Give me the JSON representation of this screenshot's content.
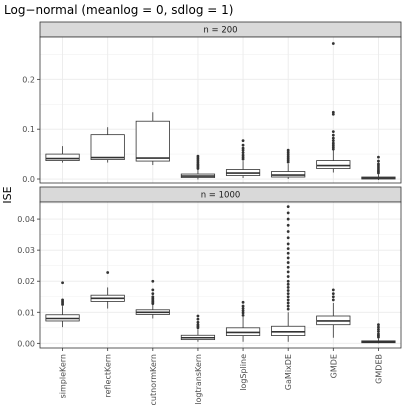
{
  "chart_data": {
    "type": "boxplot",
    "title": "Log−normal (meanlog = 0, sdlog = 1)",
    "ylabel": "ISE",
    "xlabel": "",
    "grid": true,
    "legend": "none",
    "categories": [
      "simpleKern",
      "reflectKern",
      "cutnormKern",
      "logtransKern",
      "logSpline",
      "GaMixDE",
      "GMDE",
      "GMDEB"
    ],
    "panels": [
      {
        "strip_label": "n = 200",
        "ylim": [
          -0.008,
          0.285
        ],
        "y_ticks": [
          0.0,
          0.1,
          0.2
        ],
        "y_tick_labels": [
          "0.0",
          "0.1",
          "0.2"
        ],
        "boxes": [
          {
            "category": "simpleKern",
            "whisker_low": 0.033,
            "q1": 0.037,
            "median": 0.041,
            "q3": 0.05,
            "whisker_high": 0.066,
            "outliers": []
          },
          {
            "category": "reflectKern",
            "whisker_low": 0.033,
            "q1": 0.039,
            "median": 0.043,
            "q3": 0.089,
            "whisker_high": 0.104,
            "outliers": []
          },
          {
            "category": "cutnormKern",
            "whisker_low": 0.028,
            "q1": 0.036,
            "median": 0.042,
            "q3": 0.116,
            "whisker_high": 0.134,
            "outliers": []
          },
          {
            "category": "logtransKern",
            "whisker_low": -0.001,
            "q1": 0.003,
            "median": 0.006,
            "q3": 0.01,
            "whisker_high": 0.018,
            "outliers": [
              0.021,
              0.024,
              0.027,
              0.03,
              0.034,
              0.038,
              0.042,
              0.046
            ]
          },
          {
            "category": "logSpline",
            "whisker_low": 0.002,
            "q1": 0.007,
            "median": 0.012,
            "q3": 0.019,
            "whisker_high": 0.036,
            "outliers": [
              0.04,
              0.044,
              0.048,
              0.053,
              0.058,
              0.062,
              0.068,
              0.077
            ]
          },
          {
            "category": "GaMixDE",
            "whisker_low": 0.0,
            "q1": 0.004,
            "median": 0.008,
            "q3": 0.015,
            "whisker_high": 0.03,
            "outliers": [
              0.034,
              0.038,
              0.042,
              0.046,
              0.05,
              0.054,
              0.058
            ]
          },
          {
            "category": "GMDE",
            "whisker_low": 0.013,
            "q1": 0.021,
            "median": 0.027,
            "q3": 0.037,
            "whisker_high": 0.058,
            "outliers": [
              0.06,
              0.064,
              0.068,
              0.072,
              0.077,
              0.082,
              0.088,
              0.095,
              0.13,
              0.134,
              0.272
            ]
          },
          {
            "category": "GMDEB",
            "whisker_low": -0.002,
            "q1": 0.0,
            "median": 0.002,
            "q3": 0.004,
            "whisker_high": 0.009,
            "outliers": [
              0.012,
              0.015,
              0.018,
              0.022,
              0.026,
              0.03,
              0.036,
              0.044
            ]
          }
        ]
      },
      {
        "strip_label": "n = 1000",
        "ylim": [
          -0.0015,
          0.0455
        ],
        "y_ticks": [
          0.0,
          0.01,
          0.02,
          0.03,
          0.04
        ],
        "y_tick_labels": [
          "0.00",
          "0.01",
          "0.02",
          "0.03",
          "0.04"
        ],
        "boxes": [
          {
            "category": "simpleKern",
            "whisker_low": 0.0052,
            "q1": 0.0072,
            "median": 0.008,
            "q3": 0.0092,
            "whisker_high": 0.012,
            "outliers": [
              0.0125,
              0.013,
              0.0135,
              0.014,
              0.0195
            ]
          },
          {
            "category": "reflectKern",
            "whisker_low": 0.0112,
            "q1": 0.0135,
            "median": 0.0145,
            "q3": 0.0155,
            "whisker_high": 0.018,
            "outliers": [
              0.0228
            ]
          },
          {
            "category": "cutnormKern",
            "whisker_low": 0.008,
            "q1": 0.0093,
            "median": 0.01,
            "q3": 0.0108,
            "whisker_high": 0.0125,
            "outliers": [
              0.0128,
              0.0132,
              0.0136,
              0.014,
              0.0145,
              0.015,
              0.016,
              0.0172,
              0.02
            ]
          },
          {
            "category": "logtransKern",
            "whisker_low": 0.0005,
            "q1": 0.0012,
            "median": 0.0018,
            "q3": 0.0026,
            "whisker_high": 0.0045,
            "outliers": [
              0.005,
              0.0055,
              0.006,
              0.0068,
              0.0078,
              0.0088
            ]
          },
          {
            "category": "logSpline",
            "whisker_low": 0.0005,
            "q1": 0.0025,
            "median": 0.0035,
            "q3": 0.005,
            "whisker_high": 0.0085,
            "outliers": [
              0.009,
              0.0098,
              0.0105,
              0.0112,
              0.012,
              0.0132
            ]
          },
          {
            "category": "GaMixDE",
            "whisker_low": 0.0005,
            "q1": 0.0025,
            "median": 0.0037,
            "q3": 0.0055,
            "whisker_high": 0.01,
            "outliers": [
              0.011,
              0.012,
              0.013,
              0.014,
              0.015,
              0.016,
              0.017,
              0.018,
              0.019,
              0.02,
              0.0215,
              0.023,
              0.0245,
              0.026,
              0.0275,
              0.029,
              0.0305,
              0.032,
              0.034,
              0.036,
              0.038,
              0.04,
              0.042,
              0.044
            ]
          },
          {
            "category": "GMDE",
            "whisker_low": 0.0018,
            "q1": 0.006,
            "median": 0.0072,
            "q3": 0.0088,
            "whisker_high": 0.013,
            "outliers": [
              0.014,
              0.015,
              0.016,
              0.0172
            ]
          },
          {
            "category": "GMDEB",
            "whisker_low": 0.0,
            "q1": 0.0002,
            "median": 0.0005,
            "q3": 0.0008,
            "whisker_high": 0.0015,
            "outliers": [
              0.002,
              0.0025,
              0.003,
              0.0038,
              0.0045,
              0.0052,
              0.006
            ]
          }
        ]
      }
    ]
  }
}
